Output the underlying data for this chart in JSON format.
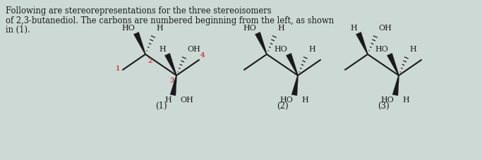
{
  "bg_color": "#ccd9d5",
  "text_color": "#1a1a1a",
  "red_color": "#cc0000",
  "bond_color": "#1a1a1a",
  "title_lines": [
    "Following are stereorepresentations for the three stereoisomers",
    "of 2,3-butanediol. The carbons are numbered beginning from the left, as shown",
    "in (1)."
  ],
  "mol_labels": [
    "(1)",
    "(2)",
    "(3)"
  ],
  "mol1": {
    "c2_top": [
      [
        "HO",
        "bold_left"
      ],
      [
        "H",
        "hash_right"
      ]
    ],
    "c3_top": [
      [
        "H",
        "bold_left"
      ],
      [
        "OH",
        "hash_right"
      ]
    ],
    "c3_bot": [
      [
        "H",
        "bold"
      ],
      "OH"
    ],
    "show_nums": true
  },
  "mol2": {
    "c2_top": [
      [
        "HO",
        "bold_left"
      ],
      [
        "H",
        "hash_right"
      ]
    ],
    "c3_top": [
      [
        "HO",
        "bold_left"
      ],
      [
        "H",
        "hash_right"
      ]
    ],
    "c3_bot": [
      [
        "HO",
        "bold"
      ],
      "H"
    ],
    "show_nums": false
  },
  "mol3": {
    "c2_top": [
      [
        "H",
        "bold_left"
      ],
      [
        "OH",
        "hash_right"
      ]
    ],
    "c3_top": [
      [
        "HO",
        "bold_left"
      ],
      [
        "H",
        "hash_right"
      ]
    ],
    "c3_bot": [
      [
        "HO",
        "bold"
      ],
      "H"
    ],
    "show_nums": false
  }
}
